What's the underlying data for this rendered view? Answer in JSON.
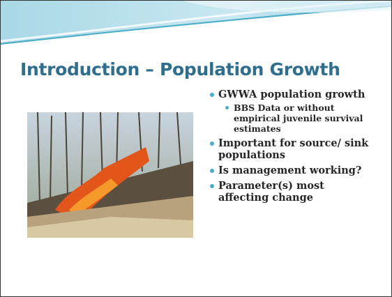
{
  "slide": {
    "title": "Introduction – Population Growth",
    "bullets": [
      {
        "text": "GWWA population growth",
        "sub": [
          "BBS Data or without empirical juvenile survival estimates"
        ]
      },
      {
        "text": "Important for source/ sink populations"
      },
      {
        "text": "Is management working?"
      },
      {
        "text": "Parameter(s) most affecting change"
      }
    ]
  }
}
